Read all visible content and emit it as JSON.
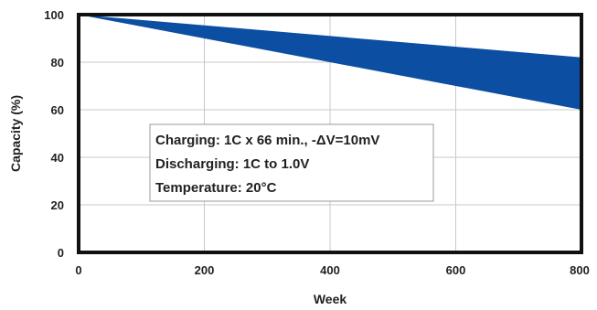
{
  "chart_data": {
    "type": "area",
    "title": "",
    "xlabel": "Week",
    "ylabel": "Capacity (%)",
    "xlim": [
      0,
      800
    ],
    "ylim": [
      0,
      100
    ],
    "x_ticks": [
      0,
      200,
      400,
      600,
      800
    ],
    "y_ticks": [
      0,
      20,
      40,
      60,
      80,
      100
    ],
    "grid": true,
    "band": {
      "x": [
        0,
        800
      ],
      "upper": [
        100,
        82
      ],
      "lower": [
        100,
        60
      ],
      "color": "#0b4ea2"
    },
    "annotation": {
      "lines": [
        "Charging: 1C x 66 min., -ΔV=10mV",
        "Discharging: 1C to 1.0V",
        "Temperature: 20°C"
      ]
    }
  }
}
